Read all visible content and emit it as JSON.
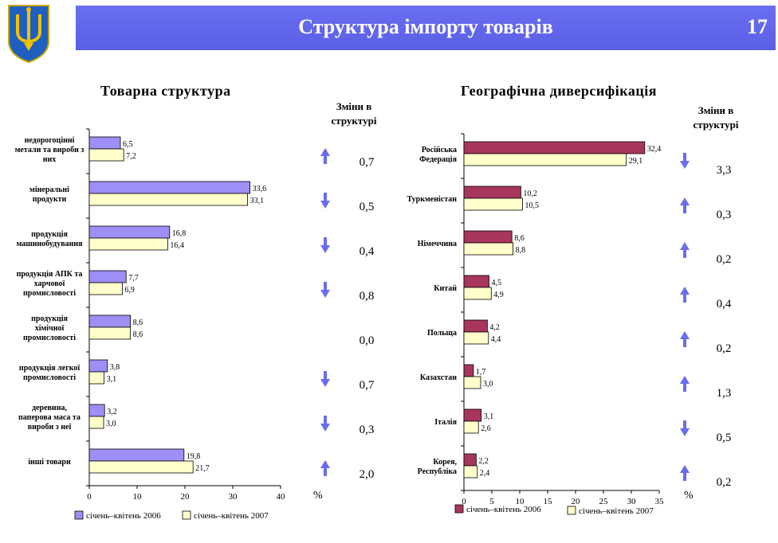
{
  "header": {
    "title": "Структура імпорту товарів",
    "page_number": "17"
  },
  "colors": {
    "header": "#6266ec",
    "arrow": "#6a6cf0",
    "left_2006": "#9e8ff6",
    "right_2006": "#a8365c",
    "bar_2007": "#ffffcc"
  },
  "chart_data": [
    {
      "type": "bar",
      "orientation": "horizontal",
      "title": "Товарна структура",
      "changes_header": [
        "Зміни в",
        "структурі"
      ],
      "categories": [
        [
          "недорогоцінні",
          "метали та вироби з",
          "них"
        ],
        [
          "мінеральні",
          "продукти"
        ],
        [
          "продукція",
          "машинобудування"
        ],
        [
          "продукція АПК та",
          "харчової",
          "промисловості"
        ],
        [
          "продукція",
          "хімічної",
          "промисловості"
        ],
        [
          "продукція легкої",
          "промисловості"
        ],
        [
          "деревина,",
          "паперова маса та",
          "вироби з неї"
        ],
        [
          "інші товари"
        ]
      ],
      "series": [
        {
          "name": "січень–квітень 2006",
          "values": [
            6.5,
            33.6,
            16.8,
            7.7,
            8.6,
            3.8,
            3.2,
            19.8
          ],
          "labels": [
            "6,5",
            "33,6",
            "16,8",
            "7,7",
            "8,6",
            "3,8",
            "3,2",
            "19,8"
          ]
        },
        {
          "name": "січень–квітень 2007",
          "values": [
            7.2,
            33.1,
            16.4,
            6.9,
            8.6,
            3.1,
            3.0,
            21.7
          ],
          "labels": [
            "7,2",
            "33,1",
            "16,4",
            "6,9",
            "8,6",
            "3,1",
            "3,0",
            "21,7"
          ]
        }
      ],
      "changes": [
        {
          "value": "0,7",
          "dir": "up"
        },
        {
          "value": "0,5",
          "dir": "down"
        },
        {
          "value": "0,4",
          "dir": "down"
        },
        {
          "value": "0,8",
          "dir": "down"
        },
        {
          "value": "0,0",
          "dir": "none"
        },
        {
          "value": "0,7",
          "dir": "down"
        },
        {
          "value": "0,3",
          "dir": "down"
        },
        {
          "value": "2,0",
          "dir": "up"
        }
      ],
      "xlim": [
        0,
        40
      ],
      "xticks": [
        0,
        10,
        20,
        30,
        40
      ],
      "unit": "%"
    },
    {
      "type": "bar",
      "orientation": "horizontal",
      "title": "Географічна диверсифікація",
      "changes_header": [
        "Зміни в",
        "структурі"
      ],
      "categories": [
        [
          "Російська",
          "Федерація"
        ],
        [
          "Туркменістан"
        ],
        [
          "Німеччина"
        ],
        [
          "Китай"
        ],
        [
          "Польща"
        ],
        [
          "Казахстан"
        ],
        [
          "Італія"
        ],
        [
          "Корея,",
          "Республіка"
        ]
      ],
      "series": [
        {
          "name": "січень–квітень 2006",
          "values": [
            32.4,
            10.2,
            8.6,
            4.5,
            4.2,
            1.7,
            3.1,
            2.2
          ],
          "labels": [
            "32,4",
            "10,2",
            "8,6",
            "4,5",
            "4,2",
            "1,7",
            "3,1",
            "2,2"
          ]
        },
        {
          "name": "січень–квітень 2007",
          "values": [
            29.1,
            10.5,
            8.8,
            4.9,
            4.4,
            3.0,
            2.6,
            2.4
          ],
          "labels": [
            "29,1",
            "10,5",
            "8,8",
            "4,9",
            "4,4",
            "3,0",
            "2,6",
            "2,4"
          ]
        }
      ],
      "changes": [
        {
          "value": "3,3",
          "dir": "down"
        },
        {
          "value": "0,3",
          "dir": "up"
        },
        {
          "value": "0,2",
          "dir": "up"
        },
        {
          "value": "0,4",
          "dir": "up"
        },
        {
          "value": "0,2",
          "dir": "up"
        },
        {
          "value": "1,3",
          "dir": "up"
        },
        {
          "value": "0,5",
          "dir": "down"
        },
        {
          "value": "0,2",
          "dir": "up"
        }
      ],
      "xlim": [
        0,
        35
      ],
      "xticks": [
        0,
        5,
        10,
        15,
        20,
        25,
        30,
        35
      ],
      "unit": "%"
    }
  ]
}
